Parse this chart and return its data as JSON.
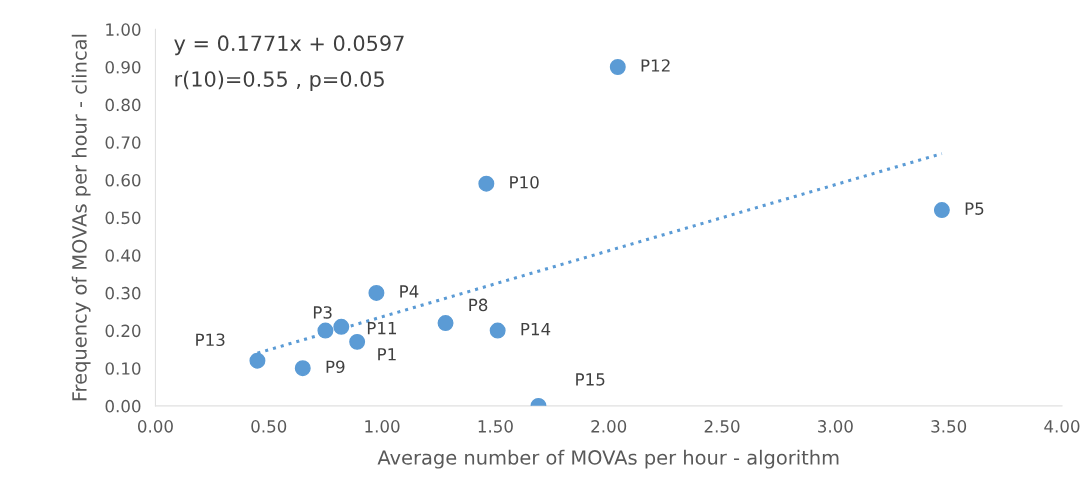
{
  "chart_data": {
    "type": "scatter",
    "xlabel": "Average number of MOVAs per hour - algorithm",
    "ylabel": "Frequency of MOVAs per hour - clincal",
    "series": [
      {
        "color": "#5b9bd5",
        "marker": "circle",
        "x": [
          0.89,
          0.75,
          0.975,
          3.47,
          1.28,
          0.65,
          1.46,
          0.82,
          2.04,
          0.45,
          1.51,
          1.69
        ],
        "values": [
          0.17,
          0.2,
          0.3,
          0.52,
          0.22,
          0.1,
          0.59,
          0.21,
          0.9,
          0.12,
          0.2,
          0.0
        ]
      },
      {
        "type": "line",
        "color": "#5b9bd5",
        "line_style": "dotted",
        "marker": "none",
        "x": [
          0.45,
          3.47
        ],
        "values": [
          0.14,
          0.67
        ]
      }
    ],
    "annotations": [
      "y = 0.1771x + 0.0597",
      "r(10)=0.55 , p=0.05",
      {
        "text": "P1",
        "x": 0.89,
        "y": 0.17
      },
      {
        "text": "P3",
        "x": 0.75,
        "y": 0.2
      },
      {
        "text": "P4",
        "x": 0.975,
        "y": 0.3
      },
      {
        "text": "P5",
        "x": 3.47,
        "y": 0.52
      },
      {
        "text": "P8",
        "x": 1.28,
        "y": 0.22
      },
      {
        "text": "P9",
        "x": 0.65,
        "y": 0.1
      },
      {
        "text": "P10",
        "x": 1.46,
        "y": 0.59
      },
      {
        "text": "P11",
        "x": 0.82,
        "y": 0.21
      },
      {
        "text": "P12",
        "x": 2.04,
        "y": 0.9
      },
      {
        "text": "P13",
        "x": 0.45,
        "y": 0.12
      },
      {
        "text": "P14",
        "x": 1.51,
        "y": 0.2
      },
      {
        "text": "P15",
        "x": 1.69,
        "y": 0.0
      }
    ],
    "xlim": [
      0,
      4
    ],
    "ylim": [
      0,
      1
    ],
    "xticks": [
      {
        "value": 0,
        "label": "0.00"
      },
      {
        "value": 0.5,
        "label": "0.50"
      },
      {
        "value": 1,
        "label": "1.00"
      },
      {
        "value": 1.5,
        "label": "1.50"
      },
      {
        "value": 2,
        "label": "2.00"
      },
      {
        "value": 2.5,
        "label": "2.50"
      },
      {
        "value": 3,
        "label": "3.00"
      },
      {
        "value": 3.5,
        "label": "3.50"
      },
      {
        "value": 4,
        "label": "4.00"
      }
    ],
    "yticks": [
      {
        "value": 0,
        "label": "0.00"
      },
      {
        "value": 0.1,
        "label": "0.10"
      },
      {
        "value": 0.2,
        "label": "0.20"
      },
      {
        "value": 0.3,
        "label": "0.30"
      },
      {
        "value": 0.4,
        "label": "0.40"
      },
      {
        "value": 0.5,
        "label": "0.50"
      },
      {
        "value": 0.6,
        "label": "0.60"
      },
      {
        "value": 0.7,
        "label": "0.70"
      },
      {
        "value": 0.8,
        "label": "0.80"
      },
      {
        "value": 0.9,
        "label": "0.90"
      },
      {
        "value": 1,
        "label": "1.00"
      }
    ],
    "grid": false,
    "legend": false
  }
}
